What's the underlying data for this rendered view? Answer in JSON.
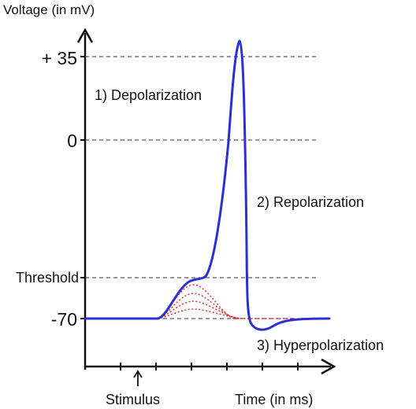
{
  "axes": {
    "y_title": "Voltage (in mV)",
    "x_title": "Time (in ms)",
    "stimulus_label": "Stimulus",
    "y_labels": {
      "plus35": "+ 35",
      "zero": "0",
      "threshold": "Threshold",
      "minus70": "-70"
    }
  },
  "phases": {
    "depolarization": "1) Depolarization",
    "repolarization": "2) Repolarization",
    "hyperpolarization": "3) Hyperpolarization"
  },
  "colors": {
    "action_potential": "#2b2fd4",
    "subthreshold": "#e0322f",
    "axis": "#111111",
    "guide": "#333333"
  }
}
